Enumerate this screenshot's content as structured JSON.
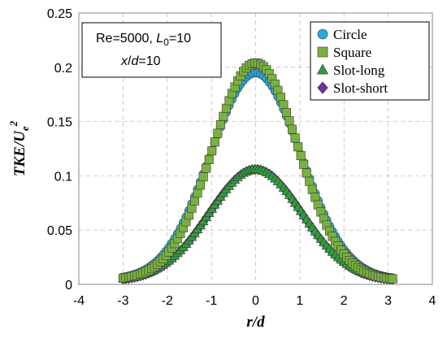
{
  "chart_data": {
    "type": "scatter",
    "xlabel": "r/d",
    "ylabel": {
      "main": "TKE/U",
      "sub": "e",
      "sup": "2"
    },
    "xlim": [
      -4,
      4
    ],
    "ylim": [
      0,
      0.25
    ],
    "xticks": [
      "-4",
      "-3",
      "-2",
      "-1",
      "0",
      "1",
      "2",
      "3",
      "4"
    ],
    "yticks": [
      "0",
      "0.05",
      "0.1",
      "0.15",
      "0.2",
      "0.25"
    ],
    "grid": true,
    "legend_position": "top-right",
    "annotation": {
      "line1": {
        "a": "Re=5000, ",
        "b": "L",
        "b_sub": "0",
        "c": "=10"
      },
      "line2": {
        "a": "x",
        "b": "/",
        "c": "d",
        "d": "=10"
      }
    },
    "x_range": [
      -3.0,
      3.1
    ],
    "series": [
      {
        "name": "Circle",
        "marker": "circle",
        "color": "#29a8e0",
        "peak": 0.195,
        "sigma": 1.02,
        "base": 0.004
      },
      {
        "name": "Square",
        "marker": "square",
        "color": "#79b13e",
        "peak": 0.204,
        "sigma": 0.97,
        "base": 0.004
      },
      {
        "name": "Slot-long",
        "marker": "triangle",
        "color": "#2e9c3c",
        "peak": 0.106,
        "sigma": 1.05,
        "base": 0.004
      },
      {
        "name": "Slot-short",
        "marker": "diamond",
        "color": "#7030a0",
        "peak": 0.106,
        "sigma": 1.05,
        "base": 0.003
      }
    ]
  }
}
